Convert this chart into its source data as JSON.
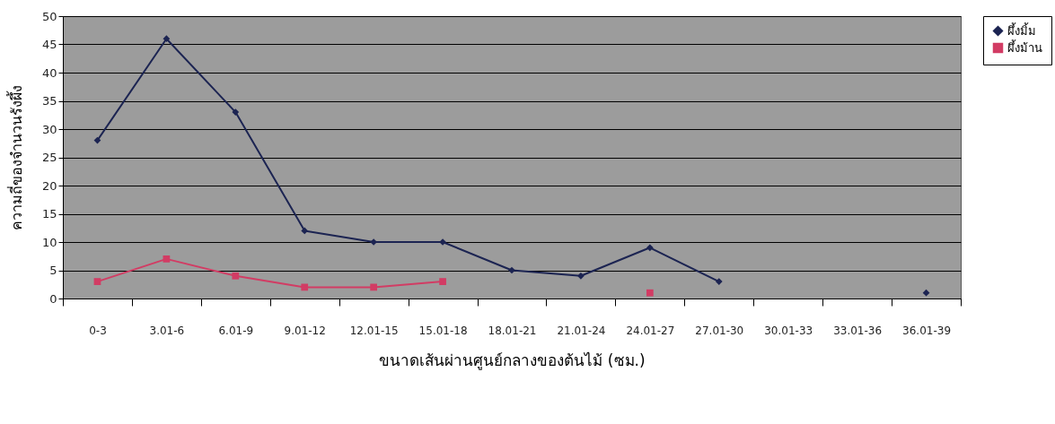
{
  "chart_data": {
    "type": "line",
    "xlabel": "ขนาดเส้นผ่านศูนย์กลางของต้นไม้ (ซม.)",
    "ylabel": "ความถี่ของจำนวนรังผึ้ง",
    "categories": [
      "0-3",
      "3.01-6",
      "6.01-9",
      "9.01-12",
      "12.01-15",
      "15.01-18",
      "18.01-21",
      "21.01-24",
      "24.01-27",
      "27.01-30",
      "30.01-33",
      "33.01-36",
      "36.01-39"
    ],
    "series": [
      {
        "name": "ผึ้งมิ้ม",
        "color": "#1c2452",
        "marker": "diamond",
        "values": [
          28,
          46,
          33,
          12,
          10,
          10,
          5,
          4,
          9,
          3,
          null,
          null,
          1
        ]
      },
      {
        "name": "ผึ้งม้าน",
        "color": "#d23c64",
        "marker": "square",
        "values": [
          3,
          7,
          4,
          2,
          2,
          3,
          null,
          null,
          1,
          null,
          null,
          null,
          null
        ]
      }
    ],
    "ylim": [
      0,
      50
    ],
    "yticks": [
      0,
      5,
      10,
      15,
      20,
      25,
      30,
      35,
      40,
      45,
      50
    ],
    "grid": "y",
    "legend": "right"
  }
}
